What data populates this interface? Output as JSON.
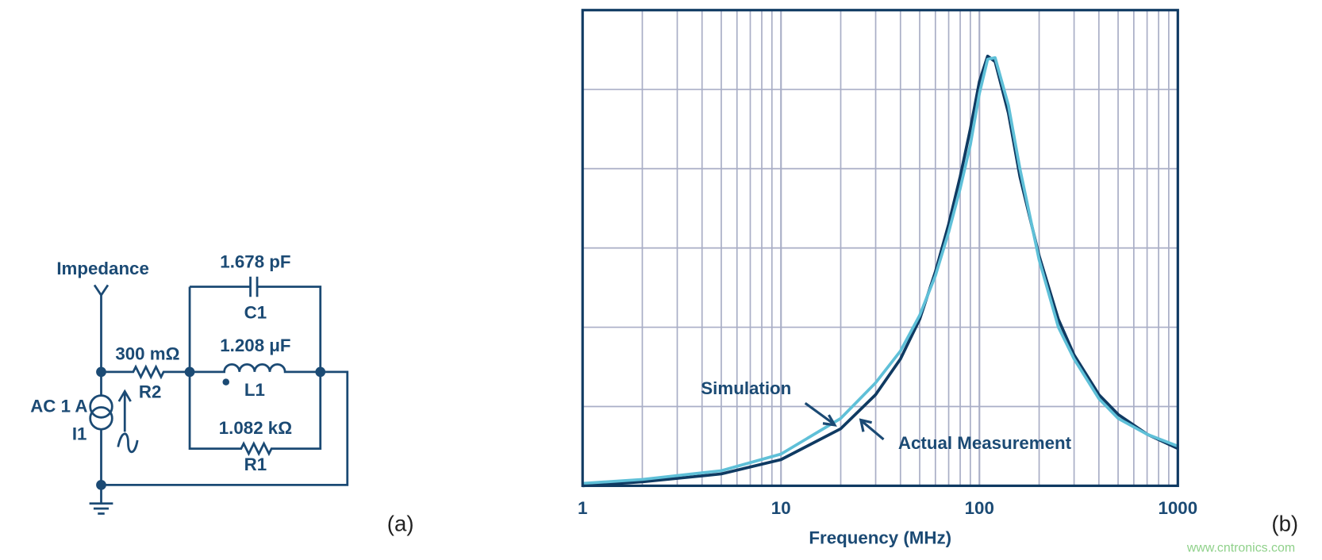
{
  "circuit": {
    "output_label": "Impedance",
    "c1_value": "1.678 pF",
    "c1_name": "C1",
    "r2_value": "300 mΩ",
    "r2_name": "R2",
    "l1_value": "1.208 μF",
    "l1_name": "L1",
    "r1_value": "1.082 kΩ",
    "r1_name": "R1",
    "source_value": "AC 1 A",
    "source_name": "I1",
    "panel_label": "(a)"
  },
  "chart_data": {
    "type": "line",
    "x_label": "Frequency (MHz)",
    "panel_label": "(b)",
    "watermark": "www.cntronics.com",
    "log_x": true,
    "grid": true,
    "xlim": [
      1,
      1000
    ],
    "xticks": [
      1,
      10,
      100,
      1000
    ],
    "x_minor_ticks": [
      2,
      3,
      4,
      5,
      6,
      7,
      8,
      9,
      20,
      30,
      40,
      50,
      60,
      70,
      80,
      90,
      200,
      300,
      400,
      500,
      600,
      700,
      800,
      900
    ],
    "ylim": [
      0,
      6
    ],
    "yticks": [
      0,
      1,
      2,
      3,
      4,
      5,
      6
    ],
    "x": [
      1,
      2,
      5,
      10,
      20,
      30,
      40,
      50,
      60,
      70,
      80,
      90,
      100,
      110,
      120,
      140,
      160,
      200,
      250,
      300,
      400,
      500,
      700,
      1000
    ],
    "series": [
      {
        "name": "Actual Measurement",
        "color": "#0f3a62",
        "values": [
          0.0,
          0.05,
          0.15,
          0.33,
          0.72,
          1.15,
          1.6,
          2.1,
          2.7,
          3.3,
          3.9,
          4.5,
          5.1,
          5.42,
          5.35,
          4.7,
          3.9,
          2.9,
          2.1,
          1.65,
          1.15,
          0.9,
          0.65,
          0.47
        ]
      },
      {
        "name": "Simulation",
        "color": "#5fc0d8",
        "values": [
          0.03,
          0.08,
          0.19,
          0.4,
          0.85,
          1.3,
          1.7,
          2.15,
          2.65,
          3.2,
          3.75,
          4.3,
          4.95,
          5.38,
          5.4,
          4.8,
          4.0,
          2.85,
          2.0,
          1.6,
          1.1,
          0.85,
          0.65,
          0.5
        ]
      }
    ],
    "annotations": [
      "Simulation",
      "Actual Measurement"
    ]
  }
}
